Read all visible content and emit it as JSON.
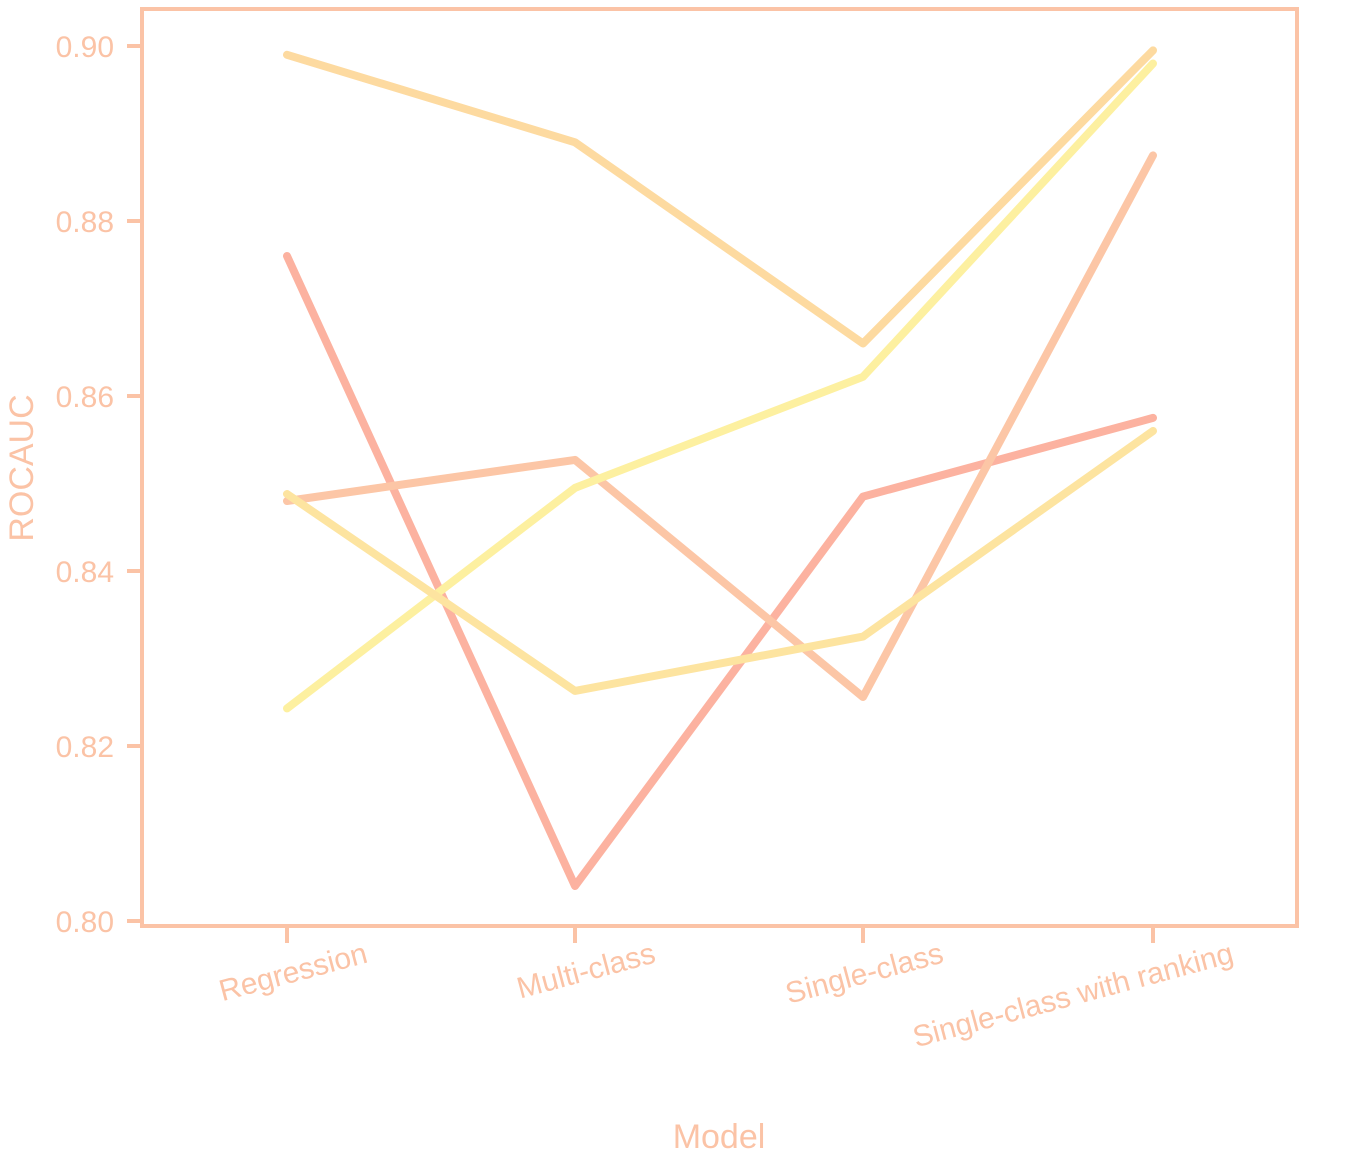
{
  "chart_data": {
    "type": "line",
    "xlabel": "Model",
    "ylabel": "ROCAUC",
    "categories": [
      "Regression",
      "Multi-class",
      "Single-class",
      "Single-class with ranking"
    ],
    "ylim": [
      0.8,
      0.905
    ],
    "yticks": [
      0.8,
      0.82,
      0.84,
      0.86,
      0.88,
      0.9
    ],
    "ytick_labels": [
      "0.80",
      "0.82",
      "0.84",
      "0.86",
      "0.88",
      "0.90"
    ],
    "grid": false,
    "legend": "none",
    "axis_color": "#fbc3a6",
    "series": [
      {
        "color": "#fcb2a0",
        "values": [
          0.876,
          0.804,
          0.8485,
          0.8575
        ]
      },
      {
        "color": "#fcc6a6",
        "values": [
          0.848,
          0.8527,
          0.8256,
          0.8875
        ]
      },
      {
        "color": "#fddaa0",
        "values": [
          0.899,
          0.889,
          0.866,
          0.8995
        ]
      },
      {
        "color": "#fdf0a0",
        "values": [
          0.8243,
          0.8495,
          0.8622,
          0.898
        ]
      },
      {
        "color": "#fde4a0",
        "values": [
          0.8488,
          0.8263,
          0.8325,
          0.856
        ]
      }
    ]
  }
}
